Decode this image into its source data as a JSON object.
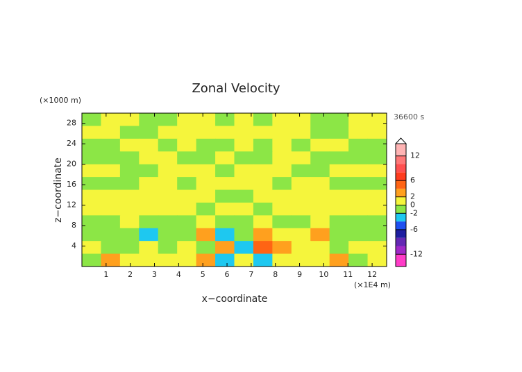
{
  "chart_data": {
    "type": "contour",
    "title": "Zonal Velocity",
    "x_label": "x−coordinate",
    "y_label": "z−coordinate",
    "x_unit": "(×1E4 m)",
    "y_unit": "(×1000 m)",
    "time_label": "36600 s",
    "xlim": [
      0,
      12.6
    ],
    "ylim": [
      0,
      30
    ],
    "xticks": [
      1,
      2,
      3,
      4,
      5,
      6,
      7,
      8,
      9,
      10,
      11,
      12
    ],
    "yticks": [
      4,
      8,
      12,
      16,
      20,
      24,
      28
    ],
    "field": {
      "values": [
        [
          -1,
          1,
          1,
          -1,
          -1,
          1,
          1,
          -1,
          1,
          -1,
          1,
          1,
          -1,
          -1,
          1,
          1
        ],
        [
          1,
          1,
          -1,
          -1,
          1,
          1,
          1,
          1,
          1,
          1,
          1,
          1,
          -1,
          -1,
          1,
          1
        ],
        [
          -1,
          -1,
          1,
          1,
          -1,
          1,
          -1,
          -1,
          1,
          -1,
          1,
          -1,
          1,
          1,
          -1,
          -1
        ],
        [
          -1,
          -1,
          -1,
          1,
          1,
          -1,
          -1,
          1,
          -1,
          -1,
          1,
          1,
          -1,
          -1,
          -1,
          -1
        ],
        [
          1,
          1,
          -1,
          -1,
          1,
          1,
          1,
          -1,
          1,
          1,
          1,
          -1,
          -1,
          1,
          1,
          1
        ],
        [
          -1,
          -1,
          -1,
          1,
          1,
          -1,
          1,
          1,
          1,
          1,
          -1,
          1,
          1,
          -1,
          -1,
          -1
        ],
        [
          1,
          1,
          1,
          1,
          1,
          1,
          1,
          -1,
          -1,
          1,
          1,
          1,
          1,
          1,
          1,
          1
        ],
        [
          1,
          1,
          1,
          1,
          1,
          1,
          -1,
          1,
          1,
          -1,
          1,
          1,
          1,
          1,
          1,
          1
        ],
        [
          -1,
          -1,
          1,
          -1,
          -1,
          -1,
          1,
          -1,
          -1,
          1,
          -1,
          -1,
          1,
          -1,
          -1,
          -1
        ],
        [
          -1,
          -1,
          -1,
          -3,
          -1,
          -1,
          3,
          -3,
          -1,
          3,
          1,
          1,
          3,
          -1,
          -1,
          -1
        ],
        [
          1,
          -1,
          -1,
          1,
          -1,
          1,
          -1,
          3,
          -3,
          5,
          3,
          1,
          1,
          -1,
          1,
          1
        ],
        [
          -1,
          3,
          1,
          1,
          1,
          1,
          3,
          -3,
          1,
          -3,
          1,
          1,
          1,
          3,
          -1,
          1
        ]
      ]
    },
    "colorbar": {
      "levels": [
        -15,
        -12,
        -10,
        -8,
        -6,
        -4,
        -2,
        0,
        2,
        4,
        6,
        8,
        10,
        12,
        15
      ],
      "colors": [
        "#ff3cc8",
        "#a028c8",
        "#6428b4",
        "#1e1ea0",
        "#1e50f0",
        "#1ec8f0",
        "#8ce646",
        "#f5f53c",
        "#ffa01e",
        "#ff6414",
        "#ff3c1e",
        "#ff5050",
        "#ff7878",
        "#ffb4b4"
      ],
      "ticks": [
        12,
        6,
        2,
        0,
        -2,
        -6,
        -12
      ]
    }
  }
}
